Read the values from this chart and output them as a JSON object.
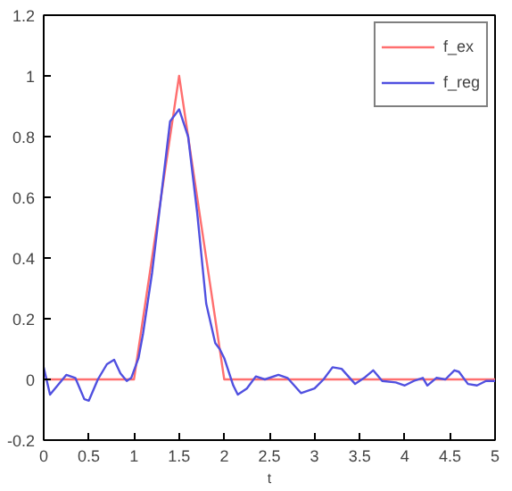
{
  "chart_data": {
    "type": "line",
    "xlabel": "t",
    "series": [
      {
        "name": "f_ex",
        "color": "#ff6f6f",
        "x": [
          0,
          1,
          1.5,
          2,
          5
        ],
        "values": [
          0,
          0,
          1,
          0,
          0
        ]
      },
      {
        "name": "f_reg",
        "color": "#5050e0",
        "x": [
          0,
          0.07,
          0.25,
          0.35,
          0.45,
          0.5,
          0.6,
          0.7,
          0.78,
          0.85,
          0.92,
          0.97,
          1.05,
          1.1,
          1.2,
          1.3,
          1.4,
          1.5,
          1.6,
          1.7,
          1.8,
          1.9,
          1.95,
          2.0,
          2.1,
          2.15,
          2.25,
          2.35,
          2.45,
          2.6,
          2.7,
          2.85,
          3.0,
          3.1,
          3.2,
          3.3,
          3.45,
          3.55,
          3.65,
          3.75,
          3.9,
          4.0,
          4.1,
          4.2,
          4.25,
          4.35,
          4.45,
          4.55,
          4.6,
          4.7,
          4.8,
          4.9,
          5.0
        ],
        "values": [
          0.04,
          -0.05,
          0.015,
          0.005,
          -0.065,
          -0.07,
          0.0,
          0.05,
          0.065,
          0.02,
          -0.005,
          0.005,
          0.07,
          0.15,
          0.35,
          0.6,
          0.85,
          0.89,
          0.8,
          0.55,
          0.25,
          0.12,
          0.1,
          0.07,
          -0.02,
          -0.05,
          -0.03,
          0.01,
          0.0,
          0.015,
          0.005,
          -0.045,
          -0.03,
          0.0,
          0.04,
          0.035,
          -0.015,
          0.005,
          0.03,
          -0.005,
          -0.01,
          -0.02,
          -0.005,
          0.005,
          -0.02,
          0.005,
          0.0,
          0.03,
          0.025,
          -0.015,
          -0.02,
          -0.005,
          -0.005
        ]
      }
    ],
    "xlim": [
      0,
      5
    ],
    "ylim": [
      -0.2,
      1.2
    ],
    "xticks": [
      0,
      0.5,
      1,
      1.5,
      2,
      2.5,
      3,
      3.5,
      4,
      4.5,
      5
    ],
    "yticks": [
      -0.2,
      0,
      0.2,
      0.4,
      0.6,
      0.8,
      1,
      1.2
    ],
    "grid": false,
    "legend": "top right"
  }
}
